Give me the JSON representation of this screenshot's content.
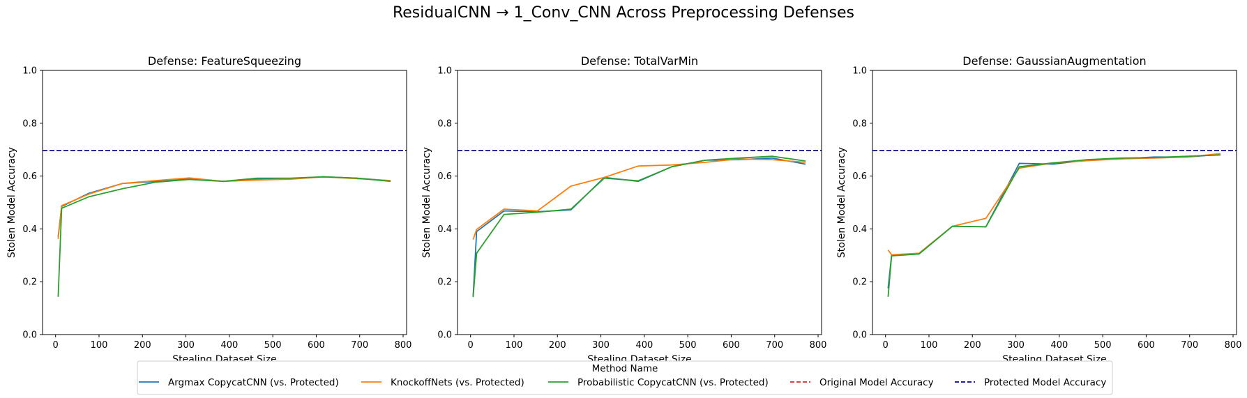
{
  "title": "ResidualCNN → 1_Conv_CNN Across Preprocessing Defenses",
  "legend": {
    "title": "Method Name",
    "entries": [
      {
        "label": "Argmax CopycatCNN (vs. Protected)",
        "color": "#1f77b4",
        "style": "solid"
      },
      {
        "label": "KnockoffNets (vs. Protected)",
        "color": "#ff7f0e",
        "style": "solid"
      },
      {
        "label": "Probabilistic CopycatCNN (vs. Protected)",
        "color": "#2ca02c",
        "style": "solid"
      },
      {
        "label": "Original Model Accuracy",
        "color": "#d62728",
        "style": "dashed"
      },
      {
        "label": "Protected Model Accuracy",
        "color": "#00008b",
        "style": "dashed"
      }
    ],
    "placement": "bottom-center"
  },
  "chart_data": [
    {
      "type": "line",
      "title": "Defense: FeatureSqueezing",
      "xlabel": "Stealing Dataset Size",
      "ylabel": "Stolen Model Accuracy",
      "xlim": [
        -30,
        808
      ],
      "ylim": [
        0,
        1.0
      ],
      "xticks": [
        0,
        100,
        200,
        300,
        400,
        500,
        600,
        700,
        800
      ],
      "yticks": [
        0.0,
        0.2,
        0.4,
        0.6,
        0.8,
        1.0
      ],
      "protected_accuracy": 0.697,
      "series": [
        {
          "name": "Argmax CopycatCNN (vs. Protected)",
          "color": "#1f77b4",
          "x": [
            6,
            14,
            77,
            154,
            231,
            308,
            386,
            463,
            540,
            617,
            694,
            771
          ],
          "y": [
            0.37,
            0.485,
            0.535,
            0.572,
            0.58,
            0.59,
            0.58,
            0.588,
            0.59,
            0.597,
            0.592,
            0.582
          ]
        },
        {
          "name": "KnockoffNets (vs. Protected)",
          "color": "#ff7f0e",
          "x": [
            6,
            14,
            77,
            154,
            231,
            308,
            386,
            463,
            540,
            617,
            694,
            771
          ],
          "y": [
            0.362,
            0.488,
            0.532,
            0.572,
            0.583,
            0.593,
            0.58,
            0.585,
            0.588,
            0.597,
            0.59,
            0.583
          ]
        },
        {
          "name": "Probabilistic CopycatCNN (vs. Protected)",
          "color": "#2ca02c",
          "x": [
            6,
            14,
            77,
            154,
            231,
            308,
            386,
            463,
            540,
            617,
            694,
            771
          ],
          "y": [
            0.143,
            0.478,
            0.522,
            0.552,
            0.577,
            0.587,
            0.58,
            0.592,
            0.592,
            0.597,
            0.592,
            0.58
          ]
        }
      ]
    },
    {
      "type": "line",
      "title": "Defense: TotalVarMin",
      "xlabel": "Stealing Dataset Size",
      "ylabel": "Stolen Model Accuracy",
      "xlim": [
        -30,
        808
      ],
      "ylim": [
        0,
        1.0
      ],
      "xticks": [
        0,
        100,
        200,
        300,
        400,
        500,
        600,
        700,
        800
      ],
      "yticks": [
        0.0,
        0.2,
        0.4,
        0.6,
        0.8,
        1.0
      ],
      "protected_accuracy": 0.697,
      "series": [
        {
          "name": "Argmax CopycatCNN (vs. Protected)",
          "color": "#1f77b4",
          "x": [
            6,
            14,
            77,
            154,
            231,
            308,
            386,
            463,
            540,
            617,
            694,
            771
          ],
          "y": [
            0.145,
            0.39,
            0.468,
            0.465,
            0.472,
            0.595,
            0.58,
            0.635,
            0.66,
            0.662,
            0.668,
            0.645
          ]
        },
        {
          "name": "KnockoffNets (vs. Protected)",
          "color": "#ff7f0e",
          "x": [
            6,
            14,
            77,
            154,
            231,
            308,
            386,
            463,
            540,
            617,
            694,
            771
          ],
          "y": [
            0.36,
            0.398,
            0.475,
            0.468,
            0.562,
            0.595,
            0.638,
            0.642,
            0.652,
            0.665,
            0.662,
            0.652
          ]
        },
        {
          "name": "Probabilistic CopycatCNN (vs. Protected)",
          "color": "#2ca02c",
          "x": [
            6,
            14,
            77,
            154,
            231,
            308,
            386,
            463,
            540,
            617,
            694,
            771
          ],
          "y": [
            0.142,
            0.308,
            0.455,
            0.463,
            0.475,
            0.592,
            0.582,
            0.635,
            0.66,
            0.668,
            0.675,
            0.657
          ]
        }
      ]
    },
    {
      "type": "line",
      "title": "Defense: GaussianAugmentation",
      "xlabel": "Stealing Dataset Size",
      "ylabel": "Stolen Model Accuracy",
      "xlim": [
        -30,
        808
      ],
      "ylim": [
        0,
        1.0
      ],
      "xticks": [
        0,
        100,
        200,
        300,
        400,
        500,
        600,
        700,
        800
      ],
      "yticks": [
        0.0,
        0.2,
        0.4,
        0.6,
        0.8,
        1.0
      ],
      "protected_accuracy": 0.697,
      "series": [
        {
          "name": "Argmax CopycatCNN (vs. Protected)",
          "color": "#1f77b4",
          "x": [
            6,
            14,
            77,
            154,
            231,
            308,
            386,
            463,
            540,
            617,
            694,
            771
          ],
          "y": [
            0.175,
            0.3,
            0.305,
            0.41,
            0.408,
            0.648,
            0.645,
            0.66,
            0.665,
            0.672,
            0.672,
            0.682
          ]
        },
        {
          "name": "KnockoffNets (vs. Protected)",
          "color": "#ff7f0e",
          "x": [
            6,
            14,
            77,
            154,
            231,
            308,
            386,
            463,
            540,
            617,
            694,
            771
          ],
          "y": [
            0.32,
            0.302,
            0.308,
            0.41,
            0.44,
            0.63,
            0.65,
            0.658,
            0.665,
            0.668,
            0.672,
            0.685
          ]
        },
        {
          "name": "Probabilistic CopycatCNN (vs. Protected)",
          "color": "#2ca02c",
          "x": [
            6,
            14,
            77,
            154,
            231,
            308,
            386,
            463,
            540,
            617,
            694,
            771
          ],
          "y": [
            0.143,
            0.298,
            0.305,
            0.41,
            0.408,
            0.635,
            0.65,
            0.662,
            0.668,
            0.67,
            0.675,
            0.68
          ]
        }
      ]
    }
  ]
}
